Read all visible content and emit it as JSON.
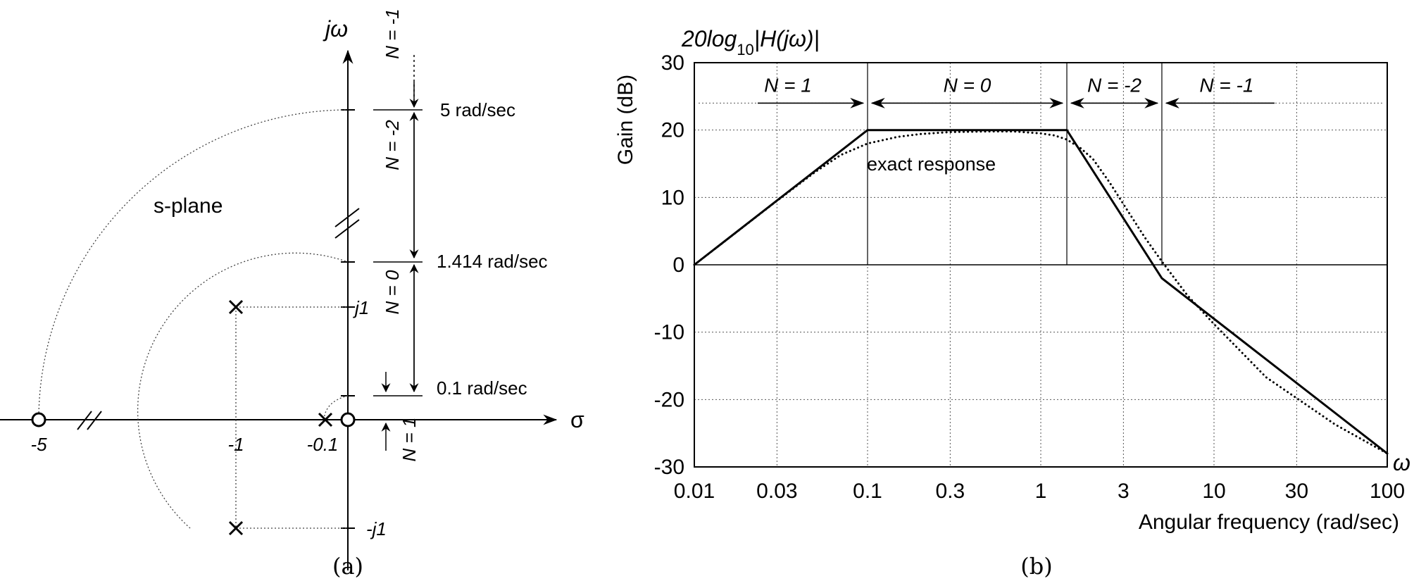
{
  "panel_a": {
    "caption": "(a)",
    "jw_label": "jω",
    "sigma_label": "σ",
    "plane_label": "s-plane",
    "axis_labels": {
      "neg5": "-5",
      "neg1": "-1",
      "neg0_1": "-0.1",
      "j1": "j1",
      "neg_j1": "-j1"
    },
    "freq_labels": {
      "f5": "5 rad/sec",
      "f1_414": "1.414 rad/sec",
      "f0_1": "0.1 rad/sec"
    },
    "slope_labels": {
      "n_neg1": "N = -1",
      "n_neg2": "N = -2",
      "n_0": "N = 0",
      "n_1": "N = 1"
    },
    "poles": [
      {
        "re": -1,
        "im": 1
      },
      {
        "re": -1,
        "im": -1
      },
      {
        "re": -0.1,
        "im": 0
      }
    ],
    "zeros": [
      {
        "re": -5,
        "im": 0
      },
      {
        "re": 0,
        "im": 0
      }
    ]
  },
  "panel_b": {
    "caption": "(b)",
    "title": "20log10|H(jω)|",
    "title_parts": {
      "pre": "20log",
      "sub": "10",
      "post": "|H(jω)|"
    },
    "ylabel": "Gain (dB)",
    "xlabel": "Angular frequency (rad/sec)",
    "omega_label": "ω",
    "annotation": "exact response",
    "regions": [
      {
        "label": "N = 1"
      },
      {
        "label": "N = 0"
      },
      {
        "label": "N = -2"
      },
      {
        "label": "N = -1"
      }
    ]
  },
  "chart_data": {
    "type": "line",
    "title": "20log10|H(jω)|",
    "xlabel": "Angular frequency (rad/sec)",
    "ylabel": "Gain (dB)",
    "xscale": "log",
    "xlim": [
      0.01,
      100
    ],
    "ylim": [
      -30,
      30
    ],
    "grid": true,
    "xticks": [
      0.01,
      0.03,
      0.1,
      0.3,
      1,
      3,
      10,
      30,
      100
    ],
    "xtick_labels": [
      "0.01",
      "0.03",
      "0.1",
      "0.3",
      "1",
      "3",
      "10",
      "30",
      "100"
    ],
    "yticks": [
      -30,
      -20,
      -10,
      0,
      10,
      20,
      30
    ],
    "ytick_labels": [
      "-30",
      "-20",
      "-10",
      "0",
      "10",
      "20",
      "30"
    ],
    "series": [
      {
        "style": "solid",
        "x": [
          0.01,
          0.1,
          1.414,
          5,
          100
        ],
        "y": [
          0,
          20,
          20,
          -2,
          -28
        ]
      },
      {
        "name": "exact response",
        "style": "dotted",
        "x": [
          0.01,
          0.015,
          0.02,
          0.03,
          0.05,
          0.07,
          0.1,
          0.15,
          0.2,
          0.3,
          0.5,
          0.7,
          1,
          1.2,
          1.414,
          1.7,
          2,
          2.5,
          3,
          4,
          5,
          7,
          10,
          20,
          50,
          100
        ],
        "y": [
          0,
          3.5,
          6,
          9.5,
          13.8,
          16.3,
          18,
          19,
          19.4,
          19.7,
          19.8,
          19.8,
          19.5,
          19.2,
          18.6,
          17.3,
          15.7,
          12.2,
          9,
          4,
          0.5,
          -4.5,
          -8.8,
          -16.7,
          -23.7,
          -28
        ]
      }
    ],
    "annotations": [
      {
        "text": "exact response"
      },
      {
        "text": "N = 1"
      },
      {
        "text": "N = 0"
      },
      {
        "text": "N = -2"
      },
      {
        "text": "N = -1"
      }
    ]
  }
}
